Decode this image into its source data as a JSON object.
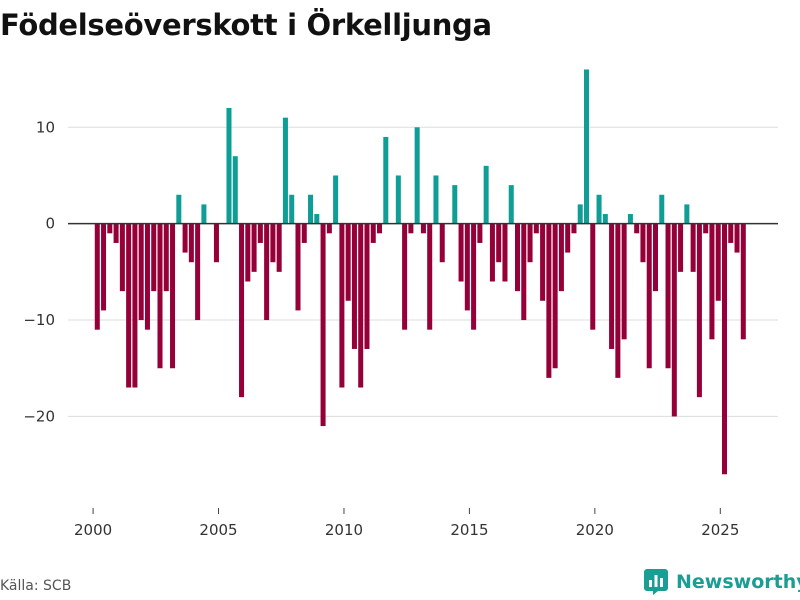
{
  "title": "Födelseöverskott i Örkelljunga",
  "source": "Källa: SCB",
  "brand": {
    "name": "Newsworthy",
    "icon": "newsworthy-logo-icon"
  },
  "colors": {
    "positive": "#0f9e96",
    "negative": "#960038",
    "zero_line": "#333333",
    "grid": "#dddddd",
    "brand": "#1a9e94"
  },
  "chart_data": {
    "type": "bar",
    "title": "Födelseöverskott i Örkelljunga",
    "xlabel": "",
    "ylabel": "",
    "xlim": [
      1999.0,
      2027.3
    ],
    "ylim": [
      -29.5,
      17.5
    ],
    "x_ticks": [
      2000,
      2005,
      2010,
      2015,
      2020,
      2025
    ],
    "y_ticks": [
      10,
      0,
      -10,
      -20
    ],
    "y_tick_labels": [
      "10",
      "0",
      "−10",
      "−20"
    ],
    "grid": true,
    "bar_width_years": 0.2,
    "x_start": 2000.167,
    "x_step": 0.25,
    "values": [
      -11,
      -9,
      -1,
      -2,
      -7,
      -17,
      -17,
      -10,
      -11,
      -7,
      -15,
      -7,
      -15,
      3,
      -3,
      -4,
      -10,
      2,
      0,
      -4,
      0,
      12,
      7,
      -18,
      -6,
      -5,
      -2,
      -10,
      -4,
      -5,
      11,
      3,
      -9,
      -2,
      3,
      1,
      -21,
      -1,
      5,
      -17,
      -8,
      -13,
      -17,
      -13,
      -2,
      -1,
      9,
      0,
      5,
      -11,
      -1,
      10,
      -1,
      -11,
      5,
      -4,
      0,
      4,
      -6,
      -9,
      -11,
      -2,
      6,
      -6,
      -4,
      -6,
      4,
      -7,
      -10,
      -4,
      -1,
      -8,
      -16,
      -15,
      -7,
      -3,
      -1,
      2,
      16,
      -11,
      3,
      1,
      -13,
      -16,
      -12,
      1,
      -1,
      -4,
      -15,
      -7,
      3,
      -15,
      -20,
      -5,
      2,
      -5,
      -18,
      -1,
      -12,
      -8,
      -26,
      -2,
      -3,
      -12
    ]
  }
}
